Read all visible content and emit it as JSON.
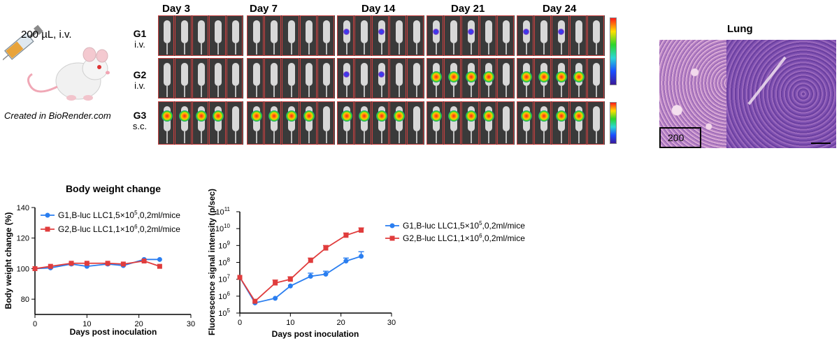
{
  "schematic": {
    "dose_label": "200 µL, i.v.",
    "credit": "Created in BioRender.com"
  },
  "imaging": {
    "days": [
      "Day 3",
      "Day 7",
      "Day 14",
      "Day 21",
      "Day 24"
    ],
    "groups": [
      {
        "name": "G1",
        "route": "i.v."
      },
      {
        "name": "G2",
        "route": "i.v."
      },
      {
        "name": "G3",
        "route": "s.c."
      }
    ]
  },
  "histology": {
    "title": "Lung",
    "scale_label": "200"
  },
  "colors": {
    "series_blue": "#2a7ef0",
    "series_red": "#e03c3c"
  },
  "chart_data": [
    {
      "type": "line",
      "title": "Body weight change",
      "xlabel": "Days post inoculation",
      "ylabel": "Body weight change (%)",
      "xlim": [
        0,
        30
      ],
      "ylim": [
        70,
        140
      ],
      "xticks": [
        "0",
        "10",
        "20",
        "30"
      ],
      "yticks": [
        "80",
        "100",
        "120",
        "140"
      ],
      "legend_position": "top-left",
      "series": [
        {
          "name": "G1,B-luc LLC1,5×10⁵,0.2ml/mice",
          "name_base": "G1,B-luc LLC1,5×10",
          "name_exp": "5",
          "name_tail": ",0,2ml/mice",
          "x": [
            0,
            3,
            7,
            10,
            14,
            17,
            21,
            24
          ],
          "y": [
            100,
            100.5,
            103,
            101.5,
            103,
            102,
            106,
            106
          ]
        },
        {
          "name": "G2,B-luc LLC1,1×10⁶,0.2ml/mice",
          "name_base": "G2,B-luc LLC1,1×10",
          "name_exp": "6",
          "name_tail": ",0,2ml/mice",
          "x": [
            0,
            3,
            7,
            10,
            14,
            17,
            21,
            24
          ],
          "y": [
            100,
            101.5,
            103.5,
            103.5,
            103.5,
            103,
            105,
            101.5
          ]
        }
      ]
    },
    {
      "type": "line",
      "title": "",
      "xlabel": "Days post inoculation",
      "ylabel": "Fluorescence signal intensity (p/sec)",
      "xlim": [
        0,
        30
      ],
      "ylim_exp": [
        5,
        11
      ],
      "yscale": "log",
      "xticks": [
        "0",
        "10",
        "20",
        "30"
      ],
      "ytick_base": "10",
      "ytick_exps": [
        "5",
        "6",
        "7",
        "8",
        "9",
        "10",
        "11"
      ],
      "legend_position": "right",
      "series": [
        {
          "name": "G1,B-luc LLC1,5×10⁵,0.2ml/mice",
          "name_base": "G1,B-luc LLC1,5×10",
          "name_exp": "5",
          "name_tail": ",0,2ml/mice",
          "x": [
            0,
            3,
            7,
            10,
            14,
            17,
            21,
            24
          ],
          "y": [
            13000000,
            400000,
            750000,
            4000000,
            15000000,
            20000000,
            120000000,
            230000000
          ],
          "err": [
            0,
            0,
            0,
            0,
            8000000,
            10000000,
            60000000,
            200000000
          ]
        },
        {
          "name": "G2,B-luc LLC1,1×10⁶,0.2ml/mice",
          "name_base": "G2,B-luc LLC1,1×10",
          "name_exp": "6",
          "name_tail": ",0,2ml/mice",
          "x": [
            0,
            3,
            7,
            10,
            14,
            17,
            21,
            24
          ],
          "y": [
            13000000,
            500000,
            6000000,
            10000000,
            130000000,
            700000000,
            4000000000,
            8000000000
          ],
          "err": [
            0,
            0,
            3000000,
            4000000,
            50000000,
            300000000,
            1500000000,
            3000000000
          ]
        }
      ]
    }
  ]
}
